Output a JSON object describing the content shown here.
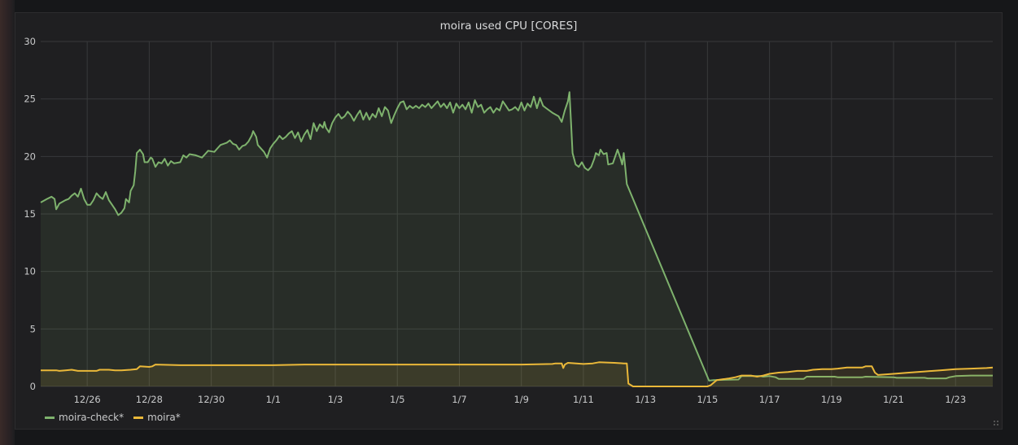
{
  "chart_data": {
    "type": "area",
    "title": "moira used CPU [CORES]",
    "xlabel": "",
    "ylabel": "",
    "x_tick_labels": [
      "12/26",
      "12/28",
      "12/30",
      "1/1",
      "1/3",
      "1/5",
      "1/7",
      "1/9",
      "1/11",
      "1/13",
      "1/15",
      "1/17",
      "1/19",
      "1/21",
      "1/23"
    ],
    "x_tick_positions": [
      1.5,
      3.5,
      5.5,
      7.5,
      9.5,
      11.5,
      13.5,
      15.5,
      17.5,
      19.5,
      21.5,
      23.5,
      25.5,
      27.5,
      29.5
    ],
    "xlim": [
      0,
      30.7
    ],
    "y_ticks": [
      "0",
      "5",
      "10",
      "15",
      "20",
      "25",
      "30"
    ],
    "ylim": [
      0,
      30
    ],
    "grid": true,
    "legend_position": "bottom-left",
    "series": [
      {
        "name": "moira-check*",
        "color": "#7eb26d",
        "points": [
          [
            0,
            16.0
          ],
          [
            0.2,
            16.3
          ],
          [
            0.35,
            16.5
          ],
          [
            0.45,
            16.3
          ],
          [
            0.5,
            15.4
          ],
          [
            0.6,
            15.9
          ],
          [
            0.8,
            16.2
          ],
          [
            0.9,
            16.3
          ],
          [
            1.0,
            16.6
          ],
          [
            1.1,
            16.8
          ],
          [
            1.2,
            16.5
          ],
          [
            1.3,
            17.2
          ],
          [
            1.4,
            16.3
          ],
          [
            1.5,
            15.8
          ],
          [
            1.6,
            15.8
          ],
          [
            1.7,
            16.2
          ],
          [
            1.8,
            16.8
          ],
          [
            1.9,
            16.5
          ],
          [
            2.0,
            16.3
          ],
          [
            2.1,
            16.9
          ],
          [
            2.2,
            16.2
          ],
          [
            2.3,
            15.8
          ],
          [
            2.4,
            15.4
          ],
          [
            2.5,
            14.9
          ],
          [
            2.6,
            15.1
          ],
          [
            2.7,
            15.5
          ],
          [
            2.75,
            16.3
          ],
          [
            2.85,
            16.0
          ],
          [
            2.9,
            17.0
          ],
          [
            3.0,
            17.5
          ],
          [
            3.05,
            18.7
          ],
          [
            3.1,
            20.3
          ],
          [
            3.2,
            20.6
          ],
          [
            3.3,
            20.2
          ],
          [
            3.35,
            19.5
          ],
          [
            3.45,
            19.5
          ],
          [
            3.55,
            19.9
          ],
          [
            3.6,
            19.8
          ],
          [
            3.7,
            19.1
          ],
          [
            3.8,
            19.5
          ],
          [
            3.9,
            19.4
          ],
          [
            4.0,
            19.8
          ],
          [
            4.1,
            19.2
          ],
          [
            4.2,
            19.6
          ],
          [
            4.3,
            19.4
          ],
          [
            4.5,
            19.5
          ],
          [
            4.6,
            20.1
          ],
          [
            4.7,
            19.9
          ],
          [
            4.8,
            20.2
          ],
          [
            5.0,
            20.1
          ],
          [
            5.1,
            20.0
          ],
          [
            5.2,
            19.9
          ],
          [
            5.3,
            20.2
          ],
          [
            5.4,
            20.5
          ],
          [
            5.6,
            20.4
          ],
          [
            5.7,
            20.7
          ],
          [
            5.8,
            21.0
          ],
          [
            6.0,
            21.2
          ],
          [
            6.1,
            21.4
          ],
          [
            6.2,
            21.1
          ],
          [
            6.3,
            21.0
          ],
          [
            6.4,
            20.6
          ],
          [
            6.5,
            20.9
          ],
          [
            6.6,
            21.0
          ],
          [
            6.7,
            21.3
          ],
          [
            6.8,
            21.8
          ],
          [
            6.85,
            22.2
          ],
          [
            6.95,
            21.7
          ],
          [
            7.0,
            21.0
          ],
          [
            7.1,
            20.7
          ],
          [
            7.2,
            20.4
          ],
          [
            7.3,
            19.9
          ],
          [
            7.4,
            20.7
          ],
          [
            7.5,
            21.1
          ],
          [
            7.6,
            21.4
          ],
          [
            7.7,
            21.8
          ],
          [
            7.8,
            21.5
          ],
          [
            7.9,
            21.7
          ],
          [
            8.0,
            22.0
          ],
          [
            8.1,
            22.2
          ],
          [
            8.2,
            21.6
          ],
          [
            8.3,
            22.1
          ],
          [
            8.4,
            21.3
          ],
          [
            8.5,
            21.9
          ],
          [
            8.6,
            22.3
          ],
          [
            8.7,
            21.5
          ],
          [
            8.8,
            22.9
          ],
          [
            8.9,
            22.2
          ],
          [
            9.0,
            22.8
          ],
          [
            9.1,
            22.5
          ],
          [
            9.15,
            23.0
          ],
          [
            9.2,
            22.5
          ],
          [
            9.3,
            22.1
          ],
          [
            9.4,
            22.9
          ],
          [
            9.5,
            23.4
          ],
          [
            9.6,
            23.7
          ],
          [
            9.7,
            23.3
          ],
          [
            9.8,
            23.5
          ],
          [
            9.9,
            23.9
          ],
          [
            10.0,
            23.6
          ],
          [
            10.1,
            23.1
          ],
          [
            10.2,
            23.6
          ],
          [
            10.3,
            24.0
          ],
          [
            10.4,
            23.2
          ],
          [
            10.5,
            23.8
          ],
          [
            10.6,
            23.2
          ],
          [
            10.7,
            23.7
          ],
          [
            10.8,
            23.4
          ],
          [
            10.9,
            24.2
          ],
          [
            11.0,
            23.5
          ],
          [
            11.1,
            24.3
          ],
          [
            11.2,
            24.0
          ],
          [
            11.3,
            22.9
          ],
          [
            11.4,
            23.6
          ],
          [
            11.5,
            24.2
          ],
          [
            11.6,
            24.7
          ],
          [
            11.7,
            24.8
          ],
          [
            11.8,
            24.1
          ],
          [
            11.9,
            24.4
          ],
          [
            12.0,
            24.2
          ],
          [
            12.1,
            24.4
          ],
          [
            12.2,
            24.2
          ],
          [
            12.3,
            24.5
          ],
          [
            12.4,
            24.3
          ],
          [
            12.5,
            24.6
          ],
          [
            12.6,
            24.2
          ],
          [
            12.7,
            24.5
          ],
          [
            12.8,
            24.8
          ],
          [
            12.9,
            24.3
          ],
          [
            13.0,
            24.6
          ],
          [
            13.1,
            24.2
          ],
          [
            13.2,
            24.7
          ],
          [
            13.3,
            23.8
          ],
          [
            13.4,
            24.6
          ],
          [
            13.5,
            24.2
          ],
          [
            13.6,
            24.5
          ],
          [
            13.7,
            24.1
          ],
          [
            13.8,
            24.7
          ],
          [
            13.9,
            23.8
          ],
          [
            14.0,
            24.9
          ],
          [
            14.1,
            24.3
          ],
          [
            14.2,
            24.5
          ],
          [
            14.3,
            23.8
          ],
          [
            14.4,
            24.1
          ],
          [
            14.5,
            24.3
          ],
          [
            14.6,
            23.8
          ],
          [
            14.7,
            24.2
          ],
          [
            14.8,
            24.0
          ],
          [
            14.9,
            24.8
          ],
          [
            15.0,
            24.4
          ],
          [
            15.1,
            24.0
          ],
          [
            15.2,
            24.1
          ],
          [
            15.3,
            24.3
          ],
          [
            15.4,
            24.0
          ],
          [
            15.5,
            24.7
          ],
          [
            15.6,
            24.0
          ],
          [
            15.7,
            24.6
          ],
          [
            15.8,
            24.3
          ],
          [
            15.9,
            25.2
          ],
          [
            16.0,
            24.2
          ],
          [
            16.1,
            25.1
          ],
          [
            16.2,
            24.4
          ],
          [
            16.3,
            24.2
          ],
          [
            16.5,
            23.8
          ],
          [
            16.7,
            23.5
          ],
          [
            16.8,
            23.0
          ],
          [
            16.9,
            24.0
          ],
          [
            17.0,
            24.8
          ],
          [
            17.05,
            25.6
          ],
          [
            17.1,
            23.0
          ],
          [
            17.15,
            20.3
          ],
          [
            17.25,
            19.3
          ],
          [
            17.35,
            19.1
          ],
          [
            17.45,
            19.5
          ],
          [
            17.55,
            19.0
          ],
          [
            17.65,
            18.8
          ],
          [
            17.75,
            19.1
          ],
          [
            17.85,
            19.8
          ],
          [
            17.9,
            20.3
          ],
          [
            18.0,
            20.1
          ],
          [
            18.05,
            20.6
          ],
          [
            18.15,
            20.2
          ],
          [
            18.25,
            20.3
          ],
          [
            18.3,
            19.3
          ],
          [
            18.45,
            19.4
          ],
          [
            18.6,
            20.6
          ],
          [
            18.7,
            19.8
          ],
          [
            18.75,
            19.3
          ],
          [
            18.8,
            20.3
          ],
          [
            18.85,
            19.0
          ],
          [
            18.9,
            17.6
          ],
          [
            21.55,
            0.5
          ],
          [
            21.7,
            0.55
          ],
          [
            22.5,
            0.6
          ],
          [
            22.6,
            0.9
          ],
          [
            23.2,
            0.9
          ],
          [
            23.3,
            0.85
          ],
          [
            23.5,
            0.9
          ],
          [
            23.7,
            0.8
          ],
          [
            23.8,
            0.65
          ],
          [
            24.6,
            0.65
          ],
          [
            24.7,
            0.85
          ],
          [
            25.6,
            0.85
          ],
          [
            25.7,
            0.8
          ],
          [
            26.5,
            0.8
          ],
          [
            26.6,
            0.85
          ],
          [
            27.5,
            0.8
          ],
          [
            27.6,
            0.75
          ],
          [
            28.5,
            0.75
          ],
          [
            28.6,
            0.7
          ],
          [
            29.2,
            0.7
          ],
          [
            29.3,
            0.8
          ],
          [
            29.5,
            0.9
          ],
          [
            30.0,
            0.95
          ],
          [
            30.7,
            0.95
          ]
        ]
      },
      {
        "name": "moira*",
        "color": "#eab839",
        "points": [
          [
            0,
            1.4
          ],
          [
            0.5,
            1.4
          ],
          [
            0.6,
            1.35
          ],
          [
            0.8,
            1.4
          ],
          [
            1.0,
            1.45
          ],
          [
            1.2,
            1.35
          ],
          [
            1.8,
            1.35
          ],
          [
            1.9,
            1.45
          ],
          [
            2.2,
            1.45
          ],
          [
            2.4,
            1.4
          ],
          [
            2.6,
            1.4
          ],
          [
            2.9,
            1.45
          ],
          [
            3.1,
            1.5
          ],
          [
            3.2,
            1.75
          ],
          [
            3.5,
            1.7
          ],
          [
            3.6,
            1.75
          ],
          [
            3.7,
            1.9
          ],
          [
            4.5,
            1.85
          ],
          [
            5.5,
            1.85
          ],
          [
            6.5,
            1.85
          ],
          [
            7.5,
            1.85
          ],
          [
            8.5,
            1.9
          ],
          [
            9.5,
            1.9
          ],
          [
            10.5,
            1.9
          ],
          [
            11.5,
            1.9
          ],
          [
            12.5,
            1.9
          ],
          [
            13.5,
            1.9
          ],
          [
            14.5,
            1.9
          ],
          [
            15.5,
            1.9
          ],
          [
            16.5,
            1.95
          ],
          [
            16.6,
            2.0
          ],
          [
            16.8,
            2.0
          ],
          [
            16.85,
            1.6
          ],
          [
            16.9,
            1.9
          ],
          [
            17.0,
            2.05
          ],
          [
            17.5,
            1.95
          ],
          [
            17.8,
            2.0
          ],
          [
            18.0,
            2.1
          ],
          [
            18.5,
            2.05
          ],
          [
            18.8,
            2.0
          ],
          [
            18.9,
            2.0
          ],
          [
            18.95,
            0.25
          ],
          [
            19.1,
            0.0
          ],
          [
            21.5,
            0.0
          ],
          [
            21.6,
            0.1
          ],
          [
            21.8,
            0.55
          ],
          [
            22.2,
            0.7
          ],
          [
            22.4,
            0.8
          ],
          [
            22.6,
            0.95
          ],
          [
            22.9,
            0.95
          ],
          [
            23.1,
            0.85
          ],
          [
            23.3,
            0.95
          ],
          [
            23.5,
            1.1
          ],
          [
            23.8,
            1.2
          ],
          [
            24.1,
            1.25
          ],
          [
            24.4,
            1.35
          ],
          [
            24.7,
            1.35
          ],
          [
            24.9,
            1.45
          ],
          [
            25.2,
            1.5
          ],
          [
            25.5,
            1.5
          ],
          [
            25.7,
            1.55
          ],
          [
            26.0,
            1.65
          ],
          [
            26.5,
            1.65
          ],
          [
            26.6,
            1.75
          ],
          [
            26.8,
            1.75
          ],
          [
            26.9,
            1.2
          ],
          [
            27.0,
            1.0
          ],
          [
            27.5,
            1.1
          ],
          [
            28.0,
            1.2
          ],
          [
            28.5,
            1.3
          ],
          [
            29.0,
            1.4
          ],
          [
            29.5,
            1.5
          ],
          [
            30.0,
            1.55
          ],
          [
            30.5,
            1.6
          ],
          [
            30.7,
            1.65
          ]
        ]
      }
    ]
  }
}
